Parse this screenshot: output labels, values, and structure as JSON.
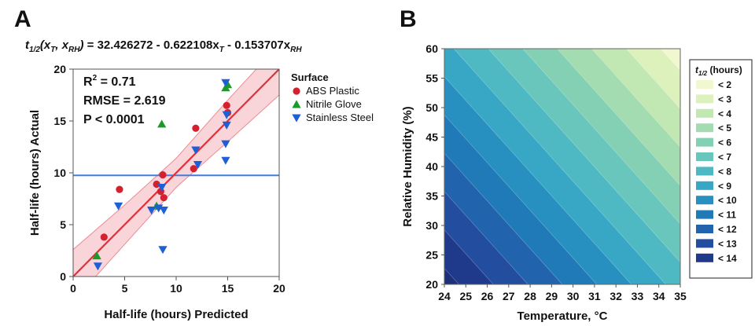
{
  "panels": {
    "a": {
      "letter": "A"
    },
    "b": {
      "letter": "B"
    }
  },
  "chart_data": [
    {
      "type": "scatter",
      "equation": {
        "lhs_t": "t",
        "lhs_sub": "1/2",
        "lhs_args_open": "(x",
        "lhs_arg1_sub": "T",
        "lhs_sep": ", x",
        "lhs_arg2_sub": "RH",
        "lhs_close": ")",
        "rhs_1": " = 32.426272 - 0.622108x",
        "rhs_1_sub": "T",
        "rhs_2": " - 0.153707x",
        "rhs_2_sub": "RH"
      },
      "xlabel": "Half-life (hours) Predicted",
      "ylabel": "Half-life (hours) Actual",
      "xlim": [
        0,
        20
      ],
      "ylim": [
        0,
        20
      ],
      "xticks": [
        0,
        5,
        10,
        15,
        20
      ],
      "yticks": [
        0,
        5,
        10,
        15,
        20
      ],
      "grid": false,
      "stats": {
        "r2_prefix": "R",
        "r2_sup": "2",
        "r2_value": " = 0.71",
        "rmse": "RMSE = 2.619",
        "p": "P < 0.0001"
      },
      "mean_line_y": 9.75,
      "fit_line": {
        "x0": 0,
        "y0": 0,
        "x1": 20,
        "y1": 20
      },
      "confidence_band": {
        "x": [
          0,
          5,
          10,
          15,
          20
        ],
        "lower": [
          -2.4,
          3.1,
          8.6,
          13.0,
          17.5
        ],
        "upper": [
          2.6,
          6.9,
          11.4,
          17.0,
          22.4
        ]
      },
      "legend": {
        "title": "Surface",
        "position": "right"
      },
      "series": [
        {
          "name": "ABS Plastic",
          "color": "#d4202f",
          "marker": "circle",
          "points": [
            [
              3.0,
              3.8
            ],
            [
              4.5,
              8.4
            ],
            [
              8.1,
              8.9
            ],
            [
              8.5,
              8.2
            ],
            [
              8.7,
              9.8
            ],
            [
              8.8,
              7.6
            ],
            [
              11.7,
              10.4
            ],
            [
              11.9,
              14.3
            ],
            [
              14.9,
              16.5
            ],
            [
              15.0,
              15.8
            ]
          ]
        },
        {
          "name": "Nitrile Glove",
          "color": "#1a9a2b",
          "marker": "triangle-up",
          "points": [
            [
              2.3,
              2.0
            ],
            [
              8.1,
              6.8
            ],
            [
              8.6,
              14.7
            ],
            [
              14.8,
              18.2
            ],
            [
              15.0,
              18.5
            ]
          ]
        },
        {
          "name": "Stainless Steel",
          "color": "#1f5fd6",
          "marker": "triangle-down",
          "points": [
            [
              2.4,
              1.0
            ],
            [
              4.4,
              6.8
            ],
            [
              7.6,
              6.4
            ],
            [
              8.3,
              6.6
            ],
            [
              8.6,
              8.6
            ],
            [
              8.8,
              6.4
            ],
            [
              8.7,
              2.6
            ],
            [
              11.9,
              12.2
            ],
            [
              12.1,
              10.8
            ],
            [
              14.8,
              18.7
            ],
            [
              14.9,
              15.6
            ],
            [
              14.9,
              14.6
            ],
            [
              14.8,
              12.8
            ],
            [
              14.8,
              11.2
            ]
          ]
        }
      ]
    },
    {
      "type": "heatmap",
      "xlabel": "Temperature, °C",
      "ylabel": "Relative Humidity (%)",
      "xlim": [
        24,
        35
      ],
      "ylim": [
        20,
        60
      ],
      "xticks": [
        24,
        25,
        26,
        27,
        28,
        29,
        30,
        31,
        32,
        33,
        34,
        35
      ],
      "yticks": [
        20,
        25,
        30,
        35,
        40,
        45,
        50,
        55,
        60
      ],
      "model": {
        "intercept": 32.426272,
        "coef_t": -0.622108,
        "coef_rh": -0.153707
      },
      "legend": {
        "title_t": "t",
        "title_sub": "1/2",
        "title_rest": " (hours)",
        "position": "right",
        "entries": [
          {
            "label": "< 2",
            "threshold": 2,
            "color": "#f1f8cf"
          },
          {
            "label": "< 3",
            "threshold": 3,
            "color": "#dcf1bc"
          },
          {
            "label": "< 4",
            "threshold": 4,
            "color": "#c1e7b2"
          },
          {
            "label": "< 5",
            "threshold": 5,
            "color": "#a3dcb0"
          },
          {
            "label": "< 6",
            "threshold": 6,
            "color": "#84d0b4"
          },
          {
            "label": "< 7",
            "threshold": 7,
            "color": "#68c6bd"
          },
          {
            "label": "< 8",
            "threshold": 8,
            "color": "#4fb9c3"
          },
          {
            "label": "< 9",
            "threshold": 9,
            "color": "#38a7c6"
          },
          {
            "label": "< 10",
            "threshold": 10,
            "color": "#2790c1"
          },
          {
            "label": "< 11",
            "threshold": 11,
            "color": "#207ab8"
          },
          {
            "label": "< 12",
            "threshold": 12,
            "color": "#2163ad"
          },
          {
            "label": "< 13",
            "threshold": 13,
            "color": "#234d9f"
          },
          {
            "label": "< 14",
            "threshold": 14,
            "color": "#1f3a8a"
          }
        ]
      }
    }
  ]
}
